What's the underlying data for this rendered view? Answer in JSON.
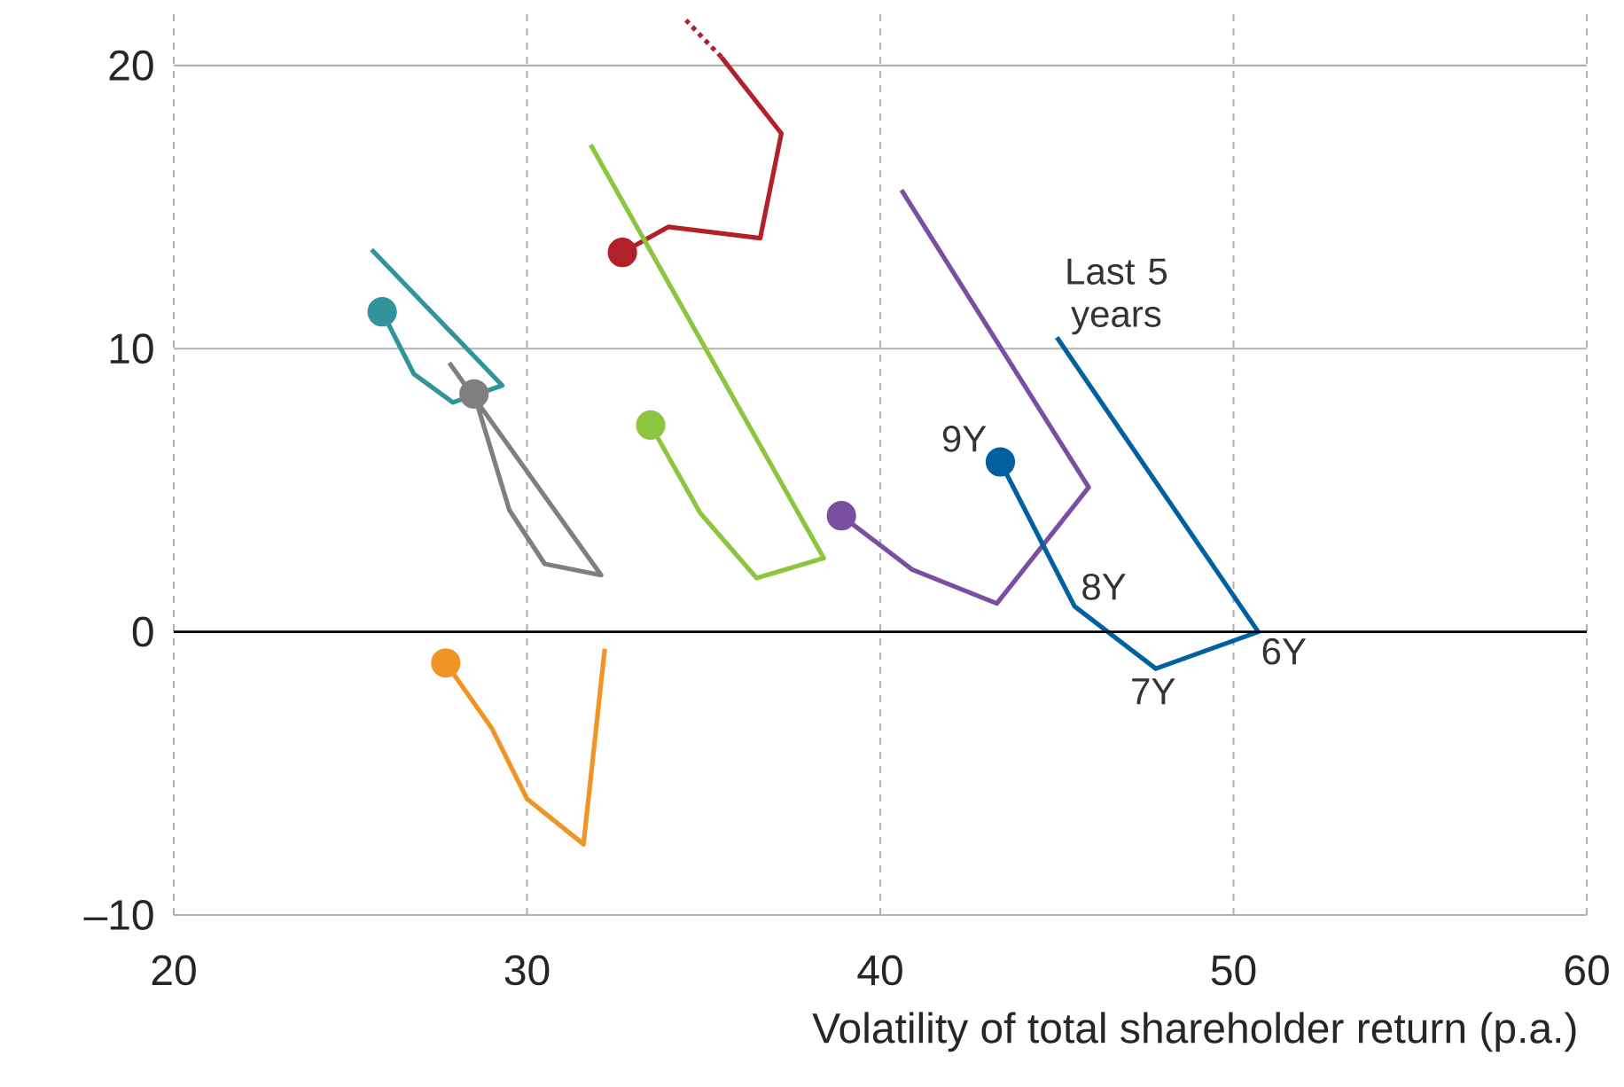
{
  "chart_data": {
    "type": "line",
    "xlabel": "Volatility of total shareholder return (p.a.)",
    "xlim": [
      20,
      60
    ],
    "xticks": [
      20,
      30,
      40,
      50,
      60
    ],
    "ylim": [
      -10,
      22
    ],
    "yticks": [
      {
        "value": -10,
        "label": "–10"
      },
      0,
      10,
      20
    ],
    "grid": true,
    "ref_lines": [
      {
        "axis": "y",
        "value": 0,
        "color": "#000000"
      }
    ],
    "annotations": [
      {
        "text": "Last 5 years",
        "x": 45.0,
        "y": 10.4
      },
      {
        "text": "9Y",
        "x": 43.4,
        "y": 6.0
      },
      {
        "text": "8Y",
        "x": 45.5,
        "y": 0.9
      },
      {
        "text": "7Y",
        "x": 47.8,
        "y": -1.3
      },
      {
        "text": "6Y",
        "x": 50.7,
        "y": 0.0
      }
    ],
    "series": [
      {
        "color": "#31949c",
        "x": [
          25.9,
          26.8,
          27.9,
          29.3,
          25.6
        ],
        "values": [
          11.3,
          9.1,
          8.1,
          8.7,
          13.5
        ]
      },
      {
        "color": "#7f7f7f",
        "x": [
          28.5,
          29.5,
          30.5,
          32.1,
          27.8
        ],
        "values": [
          8.4,
          4.3,
          2.4,
          2.0,
          9.5
        ]
      },
      {
        "color": "#f29425",
        "x": [
          27.7,
          29.0,
          30.0,
          31.6,
          32.2
        ],
        "values": [
          -1.1,
          -3.4,
          -5.9,
          -7.5,
          -0.6
        ]
      },
      {
        "color": "#b22029",
        "x": [
          32.7,
          34.0,
          36.6,
          37.2,
          35.5
        ],
        "values": [
          13.4,
          14.3,
          13.9,
          17.6,
          20.3
        ]
      },
      {
        "color": "#b22029",
        "line_style": "dotted",
        "x": [
          35.5,
          34.5
        ],
        "values": [
          20.3,
          21.6
        ]
      },
      {
        "color": "#8cc63f",
        "x": [
          33.5,
          34.9,
          36.5,
          38.4,
          31.8
        ],
        "values": [
          7.3,
          4.2,
          1.9,
          2.6,
          17.2
        ]
      },
      {
        "color": "#7b4fa0",
        "x": [
          38.9,
          40.9,
          43.3,
          45.9,
          40.6
        ],
        "values": [
          4.1,
          2.2,
          1.0,
          5.1,
          15.6
        ]
      },
      {
        "color": "#0060a0",
        "x": [
          43.4,
          45.5,
          47.8,
          50.7,
          45.0
        ],
        "values": [
          6.0,
          0.9,
          -1.3,
          0.0,
          10.4
        ]
      },
      {
        "type": "scatter",
        "marker": "circle",
        "color": "#31949c",
        "x": [
          25.9
        ],
        "values": [
          11.3
        ]
      },
      {
        "type": "scatter",
        "marker": "circle",
        "color": "#7f7f7f",
        "x": [
          28.5
        ],
        "values": [
          8.4
        ]
      },
      {
        "type": "scatter",
        "marker": "circle",
        "color": "#f29425",
        "x": [
          27.7
        ],
        "values": [
          -1.1
        ]
      },
      {
        "type": "scatter",
        "marker": "circle",
        "color": "#b22029",
        "x": [
          32.7
        ],
        "values": [
          13.4
        ]
      },
      {
        "type": "scatter",
        "marker": "circle",
        "color": "#8cc63f",
        "x": [
          33.5
        ],
        "values": [
          7.3
        ]
      },
      {
        "type": "scatter",
        "marker": "circle",
        "color": "#7b4fa0",
        "x": [
          38.9
        ],
        "values": [
          4.1
        ]
      },
      {
        "type": "scatter",
        "marker": "circle",
        "color": "#0060a0",
        "x": [
          43.4
        ],
        "values": [
          6.0
        ]
      }
    ]
  }
}
